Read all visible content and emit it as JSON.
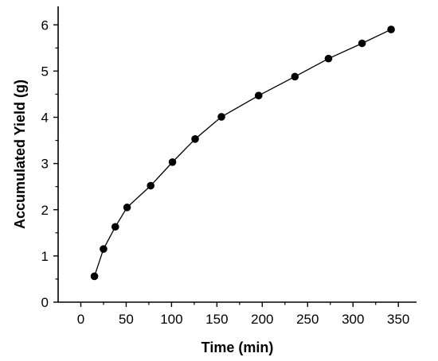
{
  "chart_data": {
    "type": "line",
    "xlabel": "Time (min)",
    "ylabel": "Accumulated Yield (g)",
    "xlim": [
      -25,
      370
    ],
    "ylim": [
      0,
      6.4
    ],
    "x_ticks": [
      0,
      50,
      100,
      150,
      200,
      250,
      300,
      350
    ],
    "y_ticks": [
      0,
      1,
      2,
      3,
      4,
      5,
      6
    ],
    "x_tick_labels": [
      "0",
      "50",
      "100",
      "150",
      "200",
      "250",
      "300",
      "350"
    ],
    "y_tick_labels": [
      "0",
      "1",
      "2",
      "3",
      "4",
      "5",
      "6"
    ],
    "grid": false,
    "legend": "none",
    "series": [
      {
        "x": [
          15,
          25,
          38,
          51,
          77,
          101,
          126,
          155,
          196,
          236,
          273,
          310,
          342
        ],
        "y": [
          0.56,
          1.15,
          1.63,
          2.05,
          2.52,
          3.03,
          3.53,
          4.01,
          4.47,
          4.88,
          5.27,
          5.6,
          5.9
        ],
        "marker": "circle",
        "color": "#000000"
      }
    ]
  }
}
